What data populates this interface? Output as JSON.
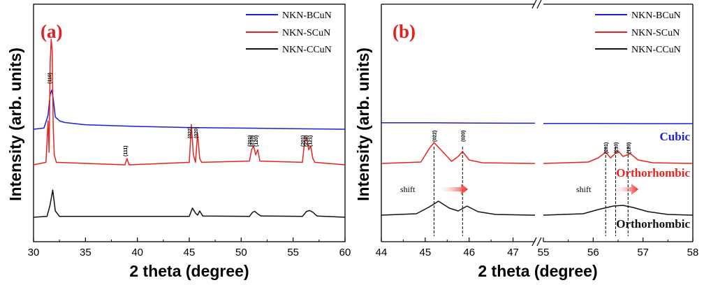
{
  "chart_data": [
    {
      "panel": "(a)",
      "type": "line",
      "xlabel": "2 theta (degree)",
      "ylabel": "Intensity (arb. units)",
      "xlim": [
        30,
        60
      ],
      "xticks": [
        "30",
        "35",
        "40",
        "45",
        "50",
        "55",
        "60"
      ],
      "legend": {
        "placement": "top-right",
        "entries": [
          "NKN-BCuN",
          "NKN-SCuN",
          "NKN-CCuN"
        ]
      },
      "series": [
        {
          "name": "NKN-BCuN",
          "color": "#1f1fd6",
          "x": [
            30,
            31,
            31.4,
            31.6,
            31.75,
            31.9,
            32.1,
            32.5,
            33,
            35,
            40,
            45,
            50,
            55,
            60
          ],
          "y": [
            0.0,
            0.02,
            0.25,
            0.62,
            0.7,
            0.55,
            0.22,
            0.15,
            0.12,
            0.08,
            0.05,
            0.03,
            0.02,
            0.01,
            0.0
          ]
        },
        {
          "name": "NKN-SCuN",
          "color": "#e8231f",
          "x": [
            30,
            31.2,
            31.4,
            31.5,
            31.6,
            31.7,
            31.8,
            31.9,
            32.0,
            32.2,
            38.8,
            39.0,
            39.2,
            45.0,
            45.2,
            45.4,
            45.6,
            45.8,
            46.0,
            46.2,
            50.8,
            51.0,
            51.2,
            51.4,
            51.6,
            51.8,
            55.9,
            56.1,
            56.3,
            56.5,
            56.7,
            56.9,
            57.1,
            60
          ],
          "y": [
            0.0,
            0.02,
            0.35,
            0.1,
            0.8,
            1.0,
            0.9,
            0.3,
            0.08,
            0.02,
            0.0,
            0.05,
            0.0,
            0.02,
            0.32,
            0.08,
            0.02,
            0.25,
            0.05,
            0.02,
            0.03,
            0.12,
            0.15,
            0.08,
            0.12,
            0.03,
            0.02,
            0.18,
            0.22,
            0.12,
            0.15,
            0.05,
            0.02,
            0.0
          ]
        },
        {
          "name": "NKN-CCuN",
          "color": "#111111",
          "x": [
            30,
            31.3,
            31.6,
            31.85,
            32.1,
            32.5,
            45.0,
            45.3,
            45.6,
            45.8,
            46.0,
            46.3,
            50.8,
            51.1,
            51.3,
            51.6,
            51.9,
            55.9,
            56.3,
            56.6,
            56.9,
            57.3,
            60
          ],
          "y": [
            0.0,
            0.02,
            0.3,
            0.65,
            0.15,
            0.02,
            0.02,
            0.22,
            0.1,
            0.05,
            0.15,
            0.03,
            0.02,
            0.12,
            0.14,
            0.08,
            0.03,
            0.02,
            0.14,
            0.16,
            0.12,
            0.03,
            0.0
          ]
        }
      ],
      "peak_labels": [
        {
          "text": "(110)",
          "x": 31.7
        },
        {
          "text": "(111)",
          "x": 39.0
        },
        {
          "text": "(022)",
          "x": 45.2
        },
        {
          "text": "(020)",
          "x": 45.8
        },
        {
          "text": "(201)",
          "x": 51.0
        },
        {
          "text": "(210)",
          "x": 51.2
        },
        {
          "text": "(120)",
          "x": 51.6
        },
        {
          "text": "(201)",
          "x": 56.1
        },
        {
          "text": "(212)",
          "x": 56.4
        },
        {
          "text": "(121)",
          "x": 56.8
        }
      ]
    },
    {
      "panel": "(b)",
      "type": "line",
      "xlabel": "2 theta (degree)",
      "ylabel": "Intensity (arb. units)",
      "xticks": [
        "44",
        "45",
        "46",
        "47",
        "55",
        "56",
        "57",
        "58"
      ],
      "axis_break": true,
      "legend": {
        "placement": "top-right",
        "entries": [
          "NKN-BCuN",
          "NKN-SCuN",
          "NKN-CCuN"
        ]
      },
      "phase_labels": [
        {
          "text": "Cubic",
          "color": "#1f1fd6"
        },
        {
          "text": "Orthorhombic",
          "color": "#e8231f"
        },
        {
          "text": "Orthorhombic",
          "color": "#111111"
        }
      ],
      "annotations": [
        "shift",
        "shift"
      ],
      "peak_labels": [
        {
          "text": "(022)",
          "x": 45.2
        },
        {
          "text": "(020)",
          "x": 45.85
        },
        {
          "text": "(201)",
          "x": 56.25
        },
        {
          "text": "(210)",
          "x": 56.45
        },
        {
          "text": "(120)",
          "x": 56.7
        }
      ],
      "series": [
        {
          "name": "NKN-BCuN",
          "color": "#1f1fd6",
          "x": [
            44,
            45,
            46,
            47,
            47.5,
            55,
            56,
            57,
            58
          ],
          "y": [
            0.02,
            0.02,
            0.015,
            0.01,
            0.01,
            0.005,
            0.005,
            0.0,
            0.0
          ]
        },
        {
          "name": "NKN-SCuN",
          "color": "#e8231f",
          "x": [
            44,
            44.9,
            45.1,
            45.2,
            45.35,
            45.6,
            45.75,
            45.85,
            46.0,
            46.3,
            47.5,
            55,
            55.9,
            56.1,
            56.25,
            56.35,
            56.5,
            56.6,
            56.75,
            56.9,
            57.2,
            58
          ],
          "y": [
            0.0,
            0.02,
            0.22,
            0.3,
            0.2,
            0.03,
            0.1,
            0.17,
            0.05,
            0.01,
            0.0,
            0.0,
            0.02,
            0.08,
            0.16,
            0.08,
            0.18,
            0.1,
            0.14,
            0.05,
            0.01,
            0.0
          ]
        },
        {
          "name": "NKN-CCuN",
          "color": "#111111",
          "x": [
            44,
            44.8,
            45.1,
            45.3,
            45.55,
            45.75,
            45.95,
            46.2,
            46.6,
            47.5,
            55,
            55.8,
            56.1,
            56.4,
            56.6,
            56.8,
            57.1,
            57.5,
            58
          ],
          "y": [
            0.0,
            0.02,
            0.12,
            0.2,
            0.1,
            0.06,
            0.13,
            0.05,
            0.01,
            0.0,
            0.0,
            0.02,
            0.08,
            0.13,
            0.14,
            0.11,
            0.05,
            0.01,
            0.0
          ]
        }
      ]
    }
  ]
}
